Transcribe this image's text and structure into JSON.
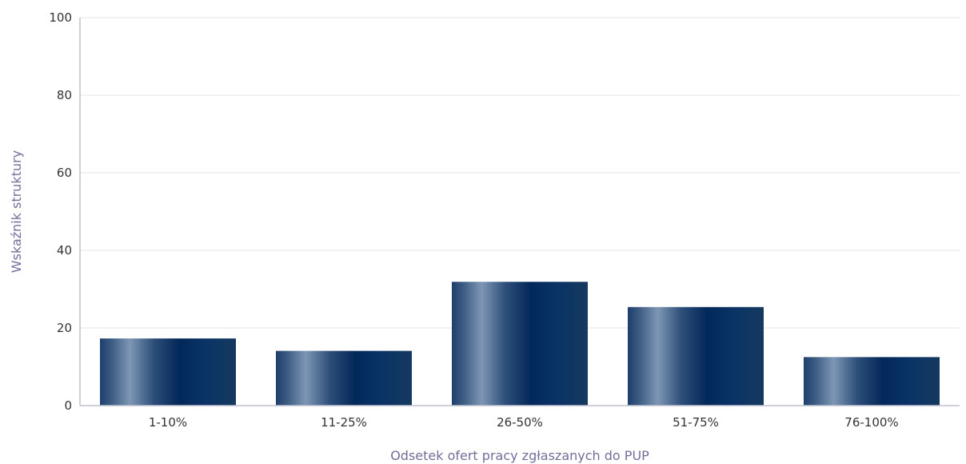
{
  "chart_data": {
    "type": "bar",
    "categories": [
      "1-10%",
      "11-25%",
      "26-50%",
      "51-75%",
      "76-100%"
    ],
    "values": [
      17.3,
      14.1,
      31.9,
      25.4,
      12.5
    ],
    "xlabel": "Odsetek ofert pracy zgłaszanych do PUP",
    "ylabel": "Wskaźnik struktury",
    "ylim": [
      0,
      100
    ],
    "yticks": [
      "0",
      "20",
      "40",
      "60",
      "80",
      "100"
    ],
    "grid": true,
    "bar_color_dark": "#03295a",
    "bar_color_light": "#7d96b4"
  }
}
